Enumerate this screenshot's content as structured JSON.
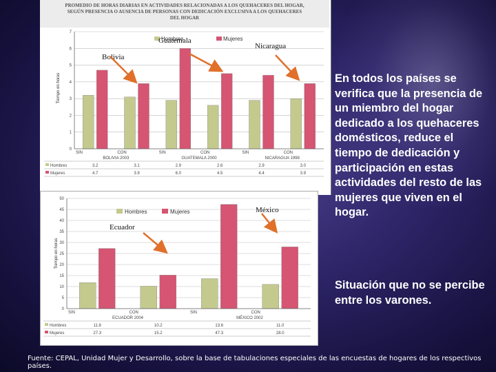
{
  "side_text": "En todos los países se verifica que la presencia de un miembro del hogar dedicado a los quehaceres domésticos, reduce el tiempo de dedicación y participación en estas actividades del resto de las mujeres que viven en el hogar.",
  "side_text2": "Situación que no se percibe entre los varones.",
  "source": "Fuente: CEPAL, Unidad Mujer y Desarrollo, sobre la base de tabulaciones especiales de las encuestas de hogares de los respectivos países.",
  "colors": {
    "hombres": "#c4c98e",
    "mujeres": "#d55572",
    "arrow": "#e0702a"
  },
  "chart_data": [
    {
      "type": "bar",
      "title": "PROMEDIO DE HORAS DIARIAS EN ACTIVIDADES RELACIONADAS A LOS QUEHACERES DEL HOGAR, SEGÚN PRESENCIA O AUSENCIA DE PERSONAS CON DEDICACIÓN EXCLUSIVA A LOS QUEHACERES DEL HOGAR",
      "ylabel": "Tiempo en horas",
      "ylim": [
        0,
        7
      ],
      "yticks": [
        0,
        1,
        2,
        3,
        4,
        5,
        6,
        7
      ],
      "categories": [
        "SIN",
        "CON",
        "SIN",
        "CON",
        "SIN",
        "CON"
      ],
      "groups": [
        "BOLIVIA 2003",
        "GUATEMALA 2000",
        "NICARAGUA 1998"
      ],
      "series": [
        {
          "name": "Hombres",
          "values": [
            3.2,
            3.1,
            2.9,
            2.6,
            2.9,
            3.0
          ]
        },
        {
          "name": "Mujeres",
          "values": [
            4.7,
            3.9,
            6.0,
            4.5,
            4.4,
            3.9
          ]
        }
      ],
      "table_rows": [
        {
          "label": "Hombres",
          "cells": [
            "3.2",
            "3.1",
            "2.9",
            "2.6",
            "2.9",
            "3.0"
          ]
        },
        {
          "label": "Mujeres",
          "cells": [
            "4.7",
            "3.9",
            "6.0",
            "4.5",
            "4.4",
            "3.9"
          ]
        }
      ],
      "annotations": {
        "guatemala": "Guatemala",
        "nicaragua": "Nicaragua",
        "bolivia": "Bolivia"
      },
      "legend_position": "top-center"
    },
    {
      "type": "bar",
      "ylabel": "Tiempo en horas",
      "ylim": [
        0,
        50
      ],
      "yticks": [
        0,
        5,
        10,
        15,
        20,
        25,
        30,
        35,
        40,
        45,
        50
      ],
      "categories": [
        "SIN",
        "CON",
        "SIN",
        "CON"
      ],
      "groups": [
        "ECUADOR 2004",
        "MÉXICO 2002"
      ],
      "series": [
        {
          "name": "Hombres",
          "values": [
            11.8,
            10.2,
            13.6,
            11.0
          ]
        },
        {
          "name": "Mujeres",
          "values": [
            27.3,
            15.2,
            47.3,
            28.0
          ]
        }
      ],
      "table_rows": [
        {
          "label": "Hombres",
          "cells": [
            "11.8",
            "10.2",
            "13.6",
            "11.0"
          ]
        },
        {
          "label": "Mujeres",
          "cells": [
            "27.3",
            "15.2",
            "47.3",
            "28.0"
          ]
        }
      ],
      "annotations": {
        "mexico": "México",
        "ecuador": "Ecuador"
      },
      "legend_position": "top-left"
    }
  ]
}
